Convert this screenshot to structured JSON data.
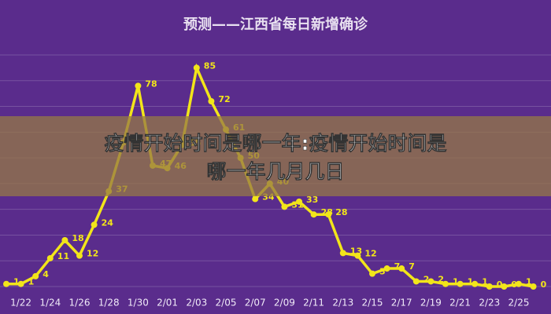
{
  "chart_data": {
    "type": "line",
    "title": "预测——江西省每日新增确诊",
    "categories": [
      null,
      "1/22",
      null,
      "1/24",
      null,
      "1/26",
      null,
      "1/28",
      null,
      "1/30",
      null,
      "2/01",
      null,
      "2/03",
      null,
      "2/05",
      null,
      "2/07",
      null,
      "2/09",
      null,
      "2/11",
      null,
      "2/13",
      null,
      "2/15",
      null,
      "2/17",
      null,
      "2/19",
      null,
      "2/21",
      null,
      "2/23",
      null,
      "2/25",
      null
    ],
    "series": [
      {
        "color": "#f2e51a",
        "values": [
          1,
          1,
          4,
          11,
          18,
          12,
          24,
          37,
          56,
          78,
          47,
          46,
          55,
          85,
          72,
          61,
          50,
          34,
          40,
          31,
          33,
          28,
          28,
          13,
          12,
          5,
          7,
          7,
          2,
          2,
          1,
          1,
          1,
          0,
          0,
          1,
          0
        ]
      }
    ],
    "ylim": [
      0,
      90
    ],
    "grid": true
  },
  "overlay": {
    "lines": [
      "疫情开始时间是哪一年:疫情开始时间是",
      "哪一年几月几日"
    ]
  }
}
